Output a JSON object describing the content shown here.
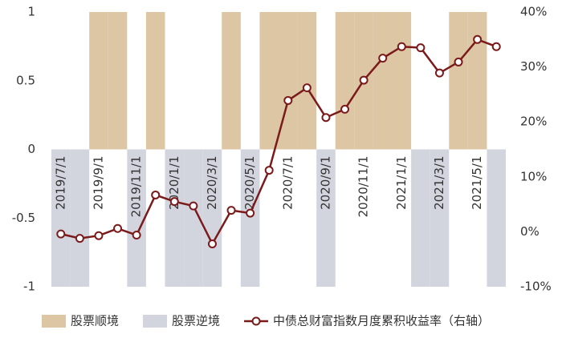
{
  "chart_data": {
    "type": "bar-line",
    "categories": [
      "2019/7/1",
      null,
      "2019/9/1",
      null,
      "2019/11/1",
      null,
      "2020/1/1",
      null,
      "2020/3/1",
      null,
      "2020/5/1",
      null,
      "2020/7/1",
      null,
      "2020/9/1",
      null,
      "2020/11/1",
      null,
      "2021/1/1",
      null,
      "2021/3/1",
      null,
      "2021/5/1",
      null
    ],
    "series": [
      {
        "name": "股票顺境",
        "type": "bar",
        "color": "#dcc6a4",
        "values": [
          null,
          null,
          1,
          1,
          null,
          1,
          null,
          null,
          null,
          1,
          null,
          1,
          1,
          1,
          null,
          1,
          1,
          1,
          1,
          null,
          null,
          1,
          1,
          null
        ]
      },
      {
        "name": "股票逆境",
        "type": "bar",
        "color": "#d3d5de",
        "values": [
          -1,
          -1,
          null,
          null,
          -1,
          null,
          -1,
          -1,
          -1,
          null,
          -1,
          null,
          null,
          null,
          -1,
          null,
          null,
          null,
          null,
          -1,
          -1,
          null,
          null,
          -1
        ]
      },
      {
        "name": "中债总财富指数月度累积收益率（右轴）",
        "type": "line",
        "axis": "y2",
        "color": "#7b1a1a",
        "values": [
          -0.4,
          -1.2,
          -0.7,
          0.6,
          -0.6,
          6.7,
          5.5,
          4.7,
          -2.2,
          3.9,
          3.4,
          11.2,
          23.9,
          26.2,
          20.8,
          22.3,
          27.6,
          31.6,
          33.7,
          33.5,
          28.9,
          30.9,
          35.0,
          33.7
        ]
      }
    ],
    "ylim": [
      -1,
      1
    ],
    "yticks": [
      1,
      0.5,
      0,
      -0.5,
      -1
    ],
    "y2lim": [
      -10,
      40
    ],
    "y2ticks": [
      {
        "value": 40,
        "label": "40%"
      },
      {
        "value": 30,
        "label": "30%"
      },
      {
        "value": 20,
        "label": "20%"
      },
      {
        "value": 10,
        "label": "10%"
      },
      {
        "value": 0,
        "label": "0%"
      },
      {
        "value": -10,
        "label": "-10%"
      }
    ]
  }
}
